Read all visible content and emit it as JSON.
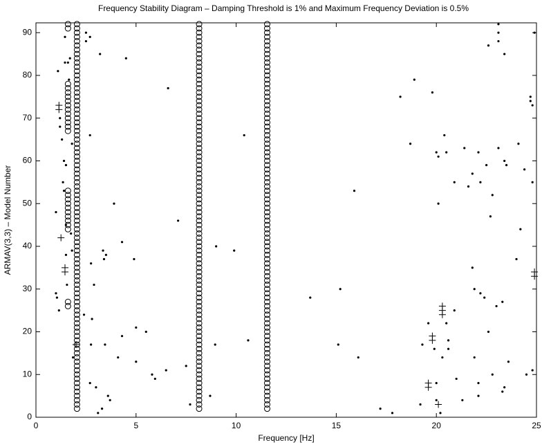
{
  "chart_data": {
    "type": "scatter",
    "title": "Frequency Stability Diagram  –  Damping Threshold is 1% and Maximum Frequency Deviation is 0.5%",
    "xlabel": "Frequency [Hz]",
    "ylabel": "ARMAV(3,3) – Model Number",
    "xlim": [
      0,
      25
    ],
    "ylim": [
      0,
      92.3
    ],
    "xticks": [
      0,
      5,
      10,
      15,
      20,
      25
    ],
    "yticks": [
      0,
      10,
      20,
      30,
      40,
      50,
      60,
      70,
      80,
      90
    ],
    "series": [
      {
        "marker": "o",
        "color": "#000000",
        "x": [
          1.6,
          1.6,
          1.6,
          1.6,
          1.6,
          1.6,
          1.6,
          1.6,
          1.6,
          1.6,
          1.6,
          1.6,
          1.6,
          1.6,
          1.6,
          1.6,
          1.6,
          1.6,
          1.6,
          1.6,
          1.6,
          1.6,
          1.6,
          1.6,
          1.6,
          1.6
        ],
        "y": [
          26,
          27,
          44,
          45,
          46,
          47,
          48,
          49,
          50,
          51,
          52,
          53,
          67,
          68,
          69,
          70,
          71,
          72,
          73,
          74,
          75,
          76,
          77,
          78,
          91,
          92
        ]
      },
      {
        "marker": "o",
        "color": "#000000",
        "x": [
          2.05,
          2.05,
          2.05,
          2.05,
          2.05,
          2.05,
          2.05,
          2.05,
          2.05,
          2.05,
          2.05,
          2.05,
          2.05,
          2.05,
          2.05,
          2.05,
          2.05,
          2.05,
          2.05,
          2.05,
          2.05,
          2.05,
          2.05,
          2.05,
          2.05,
          2.05,
          2.05,
          2.05,
          2.05,
          2.05,
          2.05,
          2.05,
          2.05,
          2.05,
          2.05,
          2.05,
          2.05,
          2.05,
          2.05,
          2.05,
          2.05,
          2.05,
          2.05,
          2.05,
          2.05,
          2.05,
          2.05,
          2.05,
          2.05,
          2.05,
          2.05,
          2.05,
          2.05,
          2.05,
          2.05,
          2.05,
          2.05,
          2.05,
          2.05,
          2.05,
          2.05,
          2.05,
          2.05,
          2.05,
          2.05,
          2.05,
          2.05,
          2.05,
          2.05,
          2.05,
          2.05,
          2.05,
          2.05,
          2.05,
          2.05,
          2.05,
          2.05,
          2.05,
          2.05,
          2.05,
          2.05,
          2.05,
          2.05,
          2.05,
          2.05,
          2.05,
          2.05,
          2.05,
          2.05,
          2.05,
          2.05
        ],
        "y": [
          2,
          3,
          4,
          5,
          6,
          7,
          8,
          9,
          10,
          11,
          12,
          13,
          14,
          15,
          16,
          17,
          18,
          19,
          20,
          21,
          22,
          23,
          24,
          25,
          26,
          27,
          28,
          29,
          30,
          31,
          32,
          33,
          34,
          35,
          36,
          37,
          38,
          39,
          40,
          41,
          42,
          43,
          44,
          45,
          46,
          47,
          48,
          49,
          50,
          51,
          52,
          53,
          54,
          55,
          56,
          57,
          58,
          59,
          60,
          61,
          62,
          63,
          64,
          65,
          66,
          67,
          68,
          69,
          70,
          71,
          72,
          73,
          74,
          75,
          76,
          77,
          78,
          79,
          80,
          81,
          82,
          83,
          84,
          85,
          86,
          87,
          88,
          89,
          90,
          91,
          92
        ]
      },
      {
        "marker": "o",
        "color": "#000000",
        "x": [
          8.15,
          8.15,
          8.15,
          8.15,
          8.15,
          8.15,
          8.15,
          8.15,
          8.15,
          8.15,
          8.15,
          8.15,
          8.15,
          8.15,
          8.15,
          8.15,
          8.15,
          8.15,
          8.15,
          8.15,
          8.15,
          8.15,
          8.15,
          8.15,
          8.15,
          8.15,
          8.15,
          8.15,
          8.15,
          8.15,
          8.15,
          8.15,
          8.15,
          8.15,
          8.15,
          8.15,
          8.15,
          8.15,
          8.15,
          8.15,
          8.15,
          8.15,
          8.15,
          8.15,
          8.15,
          8.15,
          8.15,
          8.15,
          8.15,
          8.15,
          8.15,
          8.15,
          8.15,
          8.15,
          8.15,
          8.15,
          8.15,
          8.15,
          8.15,
          8.15,
          8.15,
          8.15,
          8.15,
          8.15,
          8.15,
          8.15,
          8.15,
          8.15,
          8.15,
          8.15,
          8.15,
          8.15,
          8.15,
          8.15,
          8.15,
          8.15,
          8.15,
          8.15,
          8.15,
          8.15,
          8.15,
          8.15,
          8.15,
          8.15,
          8.15,
          8.15,
          8.15,
          8.15,
          8.15,
          8.15,
          8.15
        ],
        "y": [
          2,
          3,
          4,
          5,
          6,
          7,
          8,
          9,
          10,
          11,
          12,
          13,
          14,
          15,
          16,
          17,
          18,
          19,
          20,
          21,
          22,
          23,
          24,
          25,
          26,
          27,
          28,
          29,
          30,
          31,
          32,
          33,
          34,
          35,
          36,
          37,
          38,
          39,
          40,
          41,
          42,
          43,
          44,
          45,
          46,
          47,
          48,
          49,
          50,
          51,
          52,
          53,
          54,
          55,
          56,
          57,
          58,
          59,
          60,
          61,
          62,
          63,
          64,
          65,
          66,
          67,
          68,
          69,
          70,
          71,
          72,
          73,
          74,
          75,
          76,
          77,
          78,
          79,
          80,
          81,
          82,
          83,
          84,
          85,
          86,
          87,
          88,
          89,
          90,
          91,
          92
        ]
      },
      {
        "marker": "o",
        "color": "#000000",
        "x": [
          11.55,
          11.55,
          11.55,
          11.55,
          11.55,
          11.55,
          11.55,
          11.55,
          11.55,
          11.55,
          11.55,
          11.55,
          11.55,
          11.55,
          11.55,
          11.55,
          11.55,
          11.55,
          11.55,
          11.55,
          11.55,
          11.55,
          11.55,
          11.55,
          11.55,
          11.55,
          11.55,
          11.55,
          11.55,
          11.55,
          11.55,
          11.55,
          11.55,
          11.55,
          11.55,
          11.55,
          11.55,
          11.55,
          11.55,
          11.55,
          11.55,
          11.55,
          11.55,
          11.55,
          11.55,
          11.55,
          11.55,
          11.55,
          11.55,
          11.55,
          11.55,
          11.55,
          11.55,
          11.55,
          11.55,
          11.55,
          11.55,
          11.55,
          11.55,
          11.55,
          11.55,
          11.55,
          11.55,
          11.55,
          11.55,
          11.55,
          11.55,
          11.55,
          11.55,
          11.55,
          11.55,
          11.55,
          11.55,
          11.55,
          11.55,
          11.55,
          11.55,
          11.55,
          11.55,
          11.55,
          11.55,
          11.55,
          11.55,
          11.55,
          11.55,
          11.55,
          11.55,
          11.55,
          11.55,
          11.55,
          11.55
        ],
        "y": [
          2,
          3,
          4,
          5,
          6,
          7,
          8,
          9,
          10,
          11,
          12,
          13,
          14,
          15,
          16,
          17,
          18,
          19,
          20,
          21,
          22,
          23,
          24,
          25,
          26,
          27,
          28,
          29,
          30,
          31,
          32,
          33,
          34,
          35,
          36,
          37,
          38,
          39,
          40,
          41,
          42,
          43,
          44,
          45,
          46,
          47,
          48,
          49,
          50,
          51,
          52,
          53,
          54,
          55,
          56,
          57,
          58,
          59,
          60,
          61,
          62,
          63,
          64,
          65,
          66,
          67,
          68,
          69,
          70,
          71,
          72,
          73,
          74,
          75,
          76,
          77,
          78,
          79,
          80,
          81,
          82,
          83,
          84,
          85,
          86,
          87,
          88,
          89,
          90,
          91,
          92
        ]
      },
      {
        "marker": "+",
        "color": "#000000",
        "x": [
          1.15,
          1.15,
          1.25,
          1.45,
          1.45,
          2.0,
          19.6,
          19.6,
          19.8,
          19.8,
          20.1,
          20.3,
          20.3,
          20.3,
          24.9,
          24.9
        ],
        "y": [
          73,
          72,
          42,
          34,
          35,
          17,
          7,
          8,
          19,
          18,
          3,
          26,
          25,
          24,
          33,
          34
        ]
      },
      {
        "marker": ".",
        "color": "#000000",
        "x": [
          1.0,
          1.0,
          1.05,
          1.1,
          1.15,
          1.2,
          1.2,
          1.3,
          1.35,
          1.4,
          1.4,
          1.45,
          1.45,
          1.5,
          1.5,
          1.5,
          1.55,
          1.6,
          1.65,
          1.7,
          1.75,
          1.8,
          1.8,
          1.85,
          2.5,
          2.5,
          2.4,
          2.7,
          2.7,
          2.7,
          2.75,
          2.8,
          2.75,
          2.9,
          3.0,
          3.1,
          3.2,
          3.3,
          3.35,
          3.4,
          3.5,
          3.45,
          3.6,
          3.7,
          3.9,
          4.1,
          4.3,
          4.3,
          4.5,
          4.9,
          5.0,
          5.0,
          5.5,
          5.8,
          5.95,
          6.5,
          6.6,
          7.1,
          7.5,
          7.7,
          8.7,
          8.95,
          9.0,
          9.9,
          10.4,
          10.6,
          13.7,
          15.1,
          15.2,
          15.9,
          16.1,
          17.2,
          17.8,
          18.2,
          18.7,
          18.9,
          19.2,
          19.3,
          19.6,
          19.8,
          19.9,
          20.0,
          20.1,
          20.1,
          20.3,
          20.4,
          20.5,
          20.5,
          20.6,
          20.6,
          20.9,
          20.9,
          21.0,
          21.3,
          21.4,
          21.6,
          21.8,
          21.8,
          21.9,
          21.9,
          22.1,
          22.1,
          22.1,
          22.2,
          22.2,
          22.4,
          22.5,
          22.6,
          22.6,
          22.7,
          22.8,
          22.8,
          23.0,
          23.1,
          23.1,
          23.1,
          23.1,
          23.3,
          23.3,
          23.4,
          23.4,
          23.5,
          23.6,
          23.4,
          24.0,
          24.1,
          24.2,
          24.4,
          24.5,
          24.7,
          24.8,
          24.8,
          24.8,
          24.9,
          20.0,
          20.0,
          20.2,
          24.7
        ],
        "y": [
          48,
          29,
          28,
          81,
          25,
          70,
          68,
          65,
          55,
          60,
          53,
          89,
          83,
          59,
          45,
          38,
          31,
          83,
          79,
          84,
          43,
          64,
          39,
          14,
          90,
          88,
          24,
          89,
          66,
          8,
          36,
          23,
          17,
          31,
          7,
          1,
          85,
          2,
          39,
          37,
          38,
          17,
          5,
          4,
          50,
          14,
          41,
          19,
          84,
          37,
          21,
          13,
          20,
          10,
          9,
          11,
          77,
          46,
          12,
          3,
          5,
          17,
          40,
          39,
          66,
          18,
          28,
          17,
          30,
          53,
          14,
          2,
          1,
          75,
          64,
          79,
          3,
          17,
          22,
          76,
          16,
          62,
          50,
          61,
          14,
          66,
          62,
          22,
          18,
          16,
          25,
          55,
          9,
          4,
          63,
          54,
          57,
          35,
          30,
          14,
          8,
          5,
          62,
          29,
          55,
          28,
          59,
          20,
          87,
          47,
          52,
          10,
          26,
          92,
          90,
          88,
          63,
          6,
          27,
          85,
          60,
          59,
          13,
          7,
          37,
          64,
          44,
          58,
          10,
          74,
          73,
          55,
          11,
          90,
          4,
          8,
          1,
          75
        ]
      }
    ]
  }
}
